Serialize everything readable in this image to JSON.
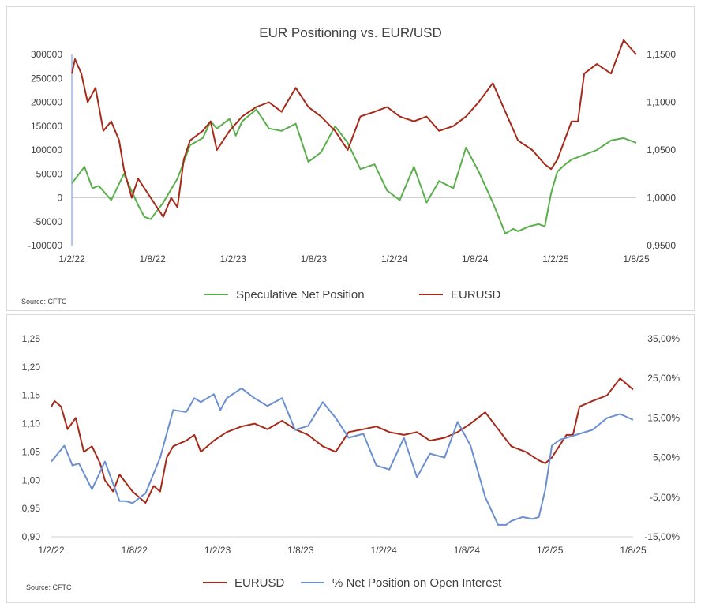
{
  "chart_data": [
    {
      "type": "line",
      "title": "EUR Positioning vs. EUR/USD",
      "source": "Source: CFTC",
      "x_tick_labels": [
        "1/2/22",
        "1/8/22",
        "1/2/23",
        "1/8/23",
        "1/2/24",
        "1/8/24",
        "1/2/25",
        "1/8/25"
      ],
      "y_left": {
        "ylim": [
          -100000,
          300000
        ],
        "tick_labels": [
          "300000",
          "250000",
          "200000",
          "150000",
          "100000",
          "50000",
          "0",
          "-50000",
          "-100000"
        ]
      },
      "y_right": {
        "ylim": [
          0.95,
          1.15
        ],
        "tick_labels": [
          "1,1500",
          "1,1000",
          "1,0500",
          "1,0000",
          "0,9500"
        ]
      },
      "legend": "bottom",
      "series": [
        {
          "name": "Speculative Net Position",
          "axis": "left",
          "color": "#5aaf4c",
          "x": [
            2022.0,
            2022.08,
            2022.13,
            2022.17,
            2022.25,
            2022.33,
            2022.42,
            2022.46,
            2022.5,
            2022.58,
            2022.67,
            2022.75,
            2022.83,
            2022.88,
            2022.92,
            2023.0,
            2023.04,
            2023.08,
            2023.17,
            2023.25,
            2023.33,
            2023.42,
            2023.5,
            2023.58,
            2023.67,
            2023.75,
            2023.83,
            2023.92,
            2024.0,
            2024.08,
            2024.17,
            2024.25,
            2024.33,
            2024.42,
            2024.5,
            2024.58,
            2024.67,
            2024.75,
            2024.8,
            2024.83,
            2024.9,
            2024.96,
            2025.0,
            2025.04,
            2025.08,
            2025.13,
            2025.17,
            2025.25,
            2025.33,
            2025.42,
            2025.5,
            2025.58
          ],
          "values": [
            30000,
            65000,
            20000,
            25000,
            -5000,
            50000,
            -15000,
            -40000,
            -45000,
            -10000,
            40000,
            110000,
            125000,
            160000,
            145000,
            165000,
            130000,
            160000,
            185000,
            145000,
            140000,
            155000,
            75000,
            95000,
            150000,
            115000,
            60000,
            70000,
            15000,
            -5000,
            65000,
            -10000,
            35000,
            20000,
            105000,
            55000,
            -10000,
            -75000,
            -65000,
            -70000,
            -60000,
            -55000,
            -60000,
            10000,
            55000,
            70000,
            80000,
            90000,
            100000,
            120000,
            125000,
            115000
          ]
        },
        {
          "name": "EURUSD",
          "axis": "right",
          "color": "#a52a1a",
          "x": [
            2022.0,
            2022.02,
            2022.06,
            2022.1,
            2022.15,
            2022.2,
            2022.25,
            2022.3,
            2022.33,
            2022.38,
            2022.42,
            2022.5,
            2022.58,
            2022.63,
            2022.67,
            2022.71,
            2022.75,
            2022.79,
            2022.83,
            2022.88,
            2022.92,
            2023.0,
            2023.08,
            2023.17,
            2023.25,
            2023.33,
            2023.42,
            2023.5,
            2023.58,
            2023.67,
            2023.75,
            2023.83,
            2023.92,
            2024.0,
            2024.08,
            2024.17,
            2024.25,
            2024.33,
            2024.42,
            2024.5,
            2024.58,
            2024.67,
            2024.75,
            2024.83,
            2024.92,
            2025.0,
            2025.04,
            2025.08,
            2025.17,
            2025.21,
            2025.25,
            2025.33,
            2025.42,
            2025.5,
            2025.58
          ],
          "values": [
            1.13,
            1.145,
            1.13,
            1.1,
            1.115,
            1.07,
            1.08,
            1.06,
            1.03,
            1.0,
            1.02,
            1.0,
            0.98,
            1.0,
            0.99,
            1.04,
            1.06,
            1.065,
            1.07,
            1.08,
            1.05,
            1.07,
            1.085,
            1.095,
            1.1,
            1.09,
            1.115,
            1.095,
            1.085,
            1.07,
            1.05,
            1.085,
            1.09,
            1.095,
            1.085,
            1.08,
            1.085,
            1.07,
            1.075,
            1.085,
            1.1,
            1.12,
            1.09,
            1.06,
            1.05,
            1.035,
            1.03,
            1.04,
            1.08,
            1.08,
            1.13,
            1.14,
            1.13,
            1.165,
            1.15
          ]
        }
      ]
    },
    {
      "type": "line",
      "title": "",
      "source": "Source: CFTC",
      "x_tick_labels": [
        "1/2/22",
        "1/8/22",
        "1/2/23",
        "1/8/23",
        "1/2/24",
        "1/8/24",
        "1/2/25",
        "1/8/25"
      ],
      "y_left": {
        "ylim": [
          0.9,
          1.25
        ],
        "tick_labels": [
          "1,25",
          "1,20",
          "1,15",
          "1,10",
          "1,05",
          "1,00",
          "0,95",
          "0,90"
        ]
      },
      "y_right": {
        "ylim": [
          -0.15,
          0.35
        ],
        "tick_labels": [
          "35,00%",
          "25,00%",
          "15,00%",
          "5,00%",
          "-5,00%",
          "-15,00%"
        ]
      },
      "legend": "bottom",
      "series": [
        {
          "name": "EURUSD",
          "axis": "left",
          "color": "#a52a1a",
          "x": [
            2022.0,
            2022.02,
            2022.06,
            2022.1,
            2022.15,
            2022.2,
            2022.25,
            2022.3,
            2022.33,
            2022.38,
            2022.42,
            2022.5,
            2022.58,
            2022.63,
            2022.67,
            2022.71,
            2022.75,
            2022.79,
            2022.83,
            2022.88,
            2022.92,
            2023.0,
            2023.08,
            2023.17,
            2023.25,
            2023.33,
            2023.42,
            2023.5,
            2023.58,
            2023.67,
            2023.75,
            2023.83,
            2023.92,
            2024.0,
            2024.08,
            2024.17,
            2024.25,
            2024.33,
            2024.42,
            2024.5,
            2024.58,
            2024.67,
            2024.75,
            2024.83,
            2024.92,
            2025.0,
            2025.04,
            2025.08,
            2025.17,
            2025.21,
            2025.25,
            2025.33,
            2025.42,
            2025.5,
            2025.58
          ],
          "values": [
            1.13,
            1.14,
            1.13,
            1.09,
            1.11,
            1.05,
            1.06,
            1.03,
            1.0,
            0.98,
            1.01,
            0.98,
            0.96,
            0.99,
            0.98,
            1.04,
            1.06,
            1.065,
            1.07,
            1.08,
            1.05,
            1.07,
            1.085,
            1.095,
            1.1,
            1.09,
            1.105,
            1.09,
            1.08,
            1.06,
            1.05,
            1.085,
            1.09,
            1.095,
            1.085,
            1.08,
            1.085,
            1.07,
            1.075,
            1.085,
            1.1,
            1.12,
            1.09,
            1.06,
            1.05,
            1.035,
            1.03,
            1.04,
            1.08,
            1.08,
            1.13,
            1.14,
            1.15,
            1.18,
            1.16
          ]
        },
        {
          "name": "% Net Position on Open Interest",
          "axis": "right",
          "color": "#6b8fd1",
          "x": [
            2022.0,
            2022.08,
            2022.13,
            2022.17,
            2022.25,
            2022.33,
            2022.42,
            2022.46,
            2022.5,
            2022.58,
            2022.67,
            2022.75,
            2022.83,
            2022.88,
            2022.92,
            2023.0,
            2023.04,
            2023.08,
            2023.17,
            2023.25,
            2023.33,
            2023.42,
            2023.5,
            2023.58,
            2023.67,
            2023.75,
            2023.83,
            2023.92,
            2024.0,
            2024.08,
            2024.17,
            2024.25,
            2024.33,
            2024.42,
            2024.5,
            2024.58,
            2024.67,
            2024.75,
            2024.8,
            2024.83,
            2024.9,
            2024.96,
            2025.0,
            2025.04,
            2025.08,
            2025.13,
            2025.17,
            2025.25,
            2025.33,
            2025.42,
            2025.5,
            2025.58
          ],
          "values": [
            0.04,
            0.08,
            0.03,
            0.035,
            -0.03,
            0.04,
            -0.06,
            -0.06,
            -0.065,
            -0.04,
            0.05,
            0.17,
            0.165,
            0.2,
            0.19,
            0.21,
            0.17,
            0.2,
            0.225,
            0.2,
            0.18,
            0.2,
            0.12,
            0.13,
            0.19,
            0.15,
            0.1,
            0.11,
            0.03,
            0.02,
            0.1,
            0.0,
            0.06,
            0.05,
            0.14,
            0.08,
            -0.05,
            -0.12,
            -0.12,
            -0.11,
            -0.1,
            -0.105,
            -0.1,
            -0.03,
            0.08,
            0.095,
            0.1,
            0.11,
            0.12,
            0.15,
            0.16,
            0.145
          ]
        }
      ]
    }
  ]
}
